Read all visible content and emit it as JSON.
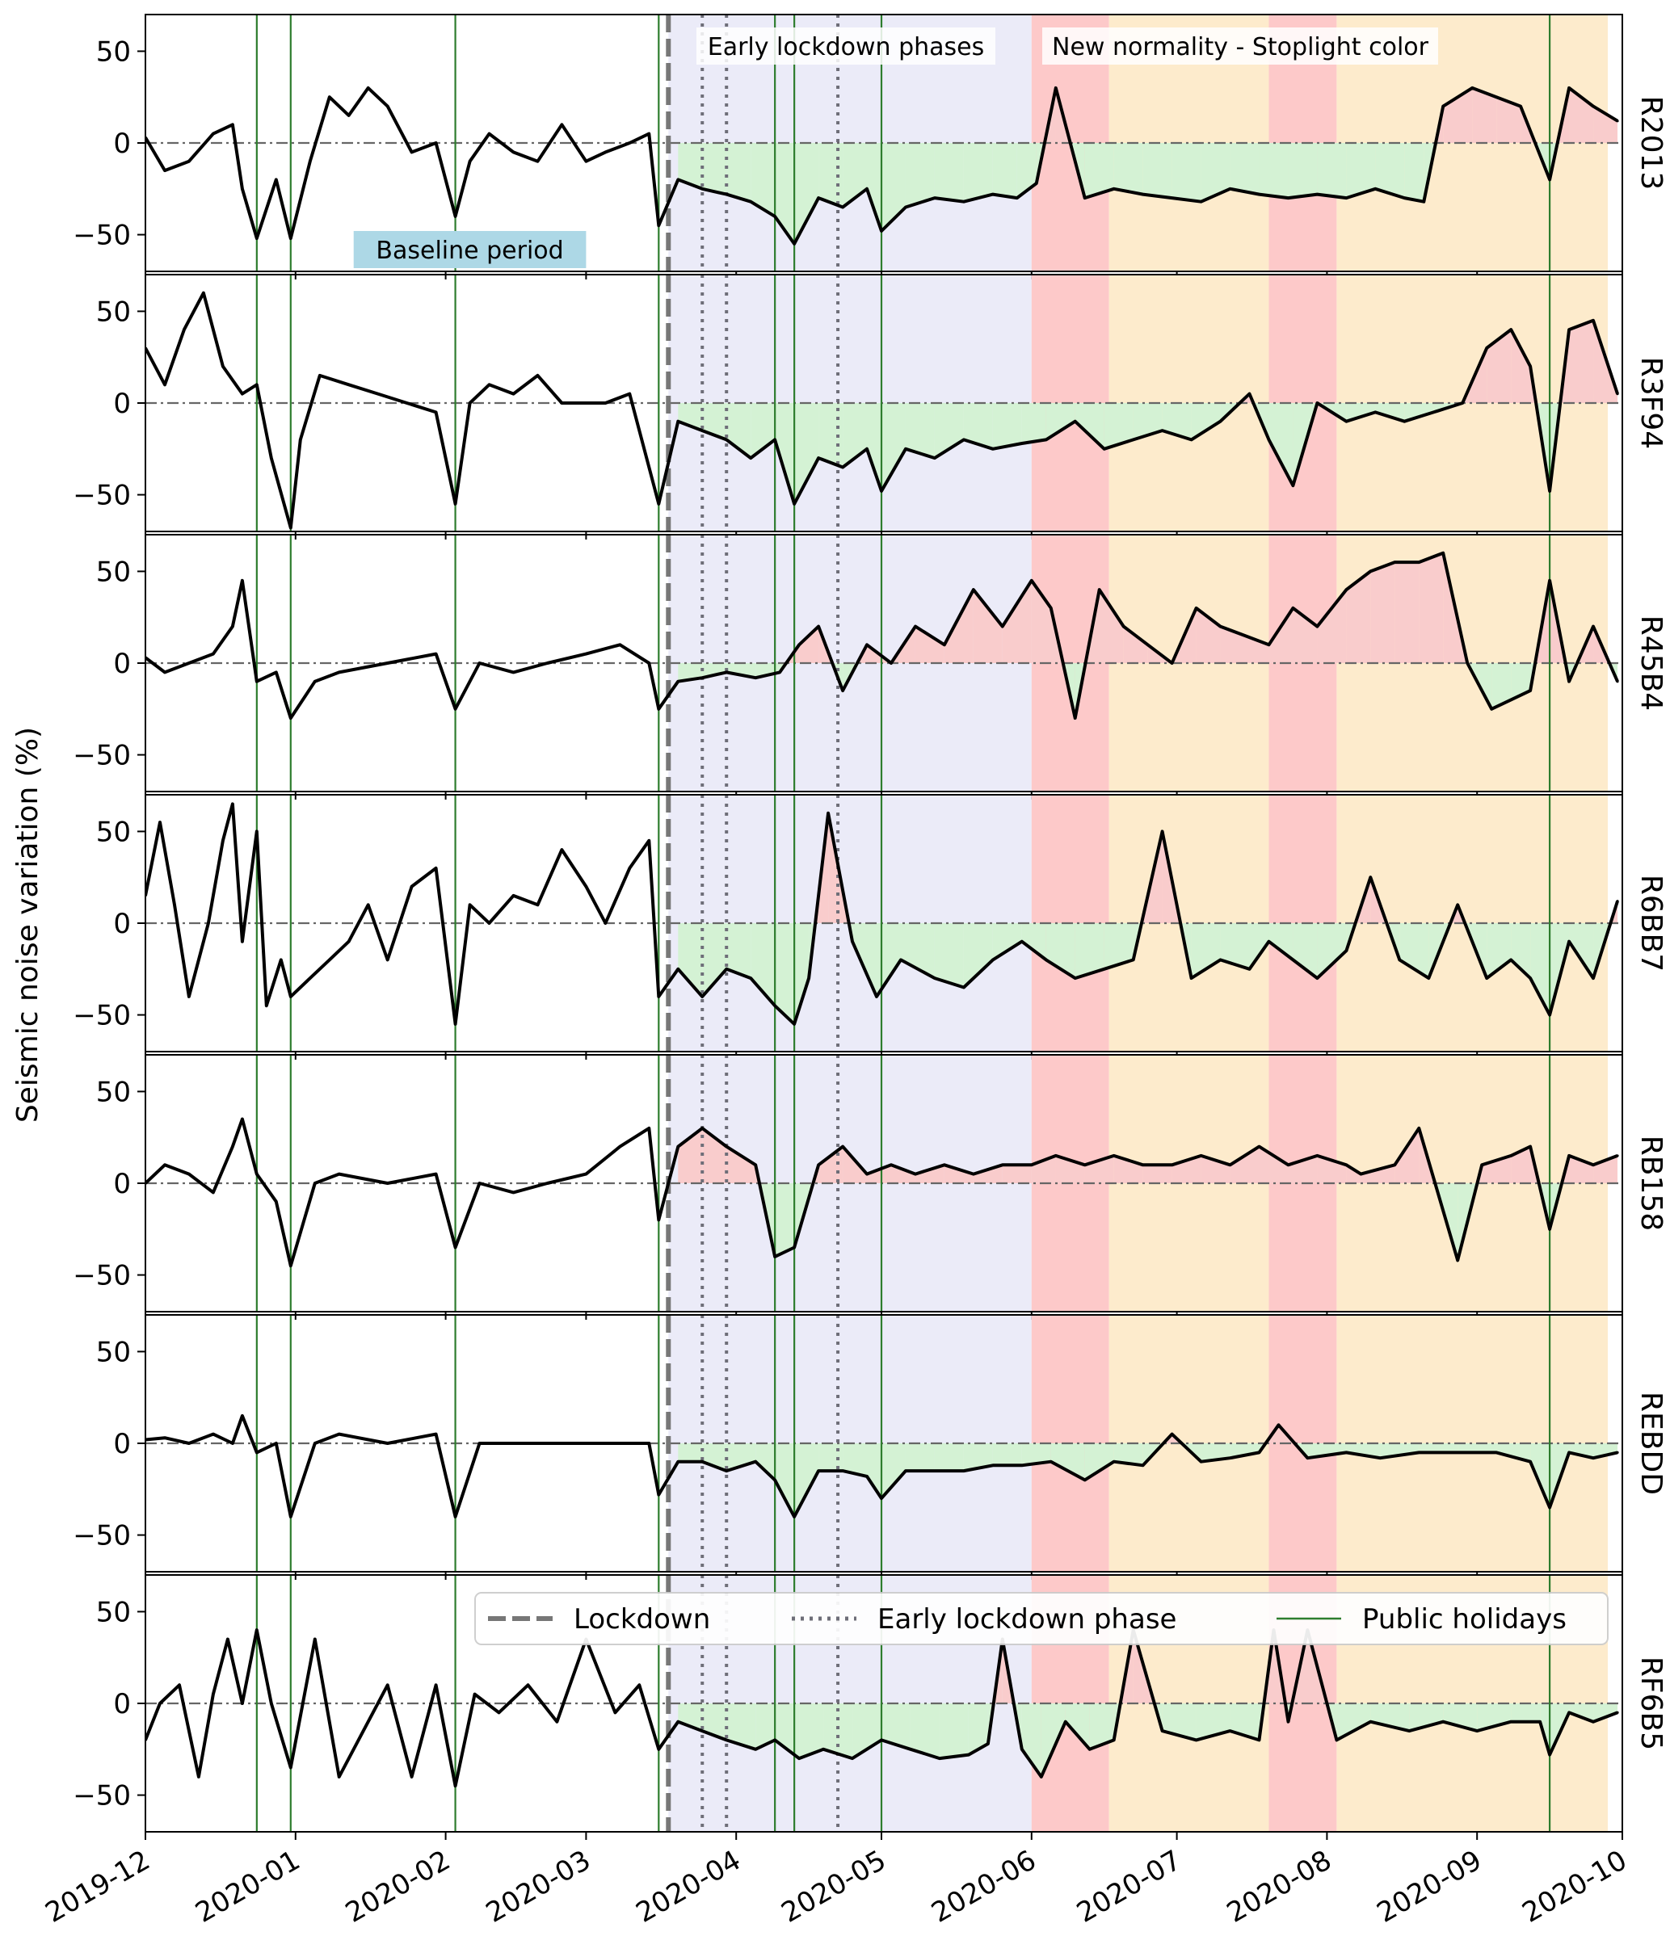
{
  "chart_data": {
    "type": "line",
    "ylabel": "Seismic noise variation (%)",
    "ylim": [
      -70,
      70
    ],
    "yticks": [
      -50,
      0,
      50
    ],
    "ytick_labels": [
      "−50",
      "0",
      "50"
    ],
    "xlim": [
      "2019-12-01",
      "2020-10-01"
    ],
    "xticks": [
      "2019-12-01",
      "2020-01-01",
      "2020-02-01",
      "2020-03-01",
      "2020-04-01",
      "2020-05-01",
      "2020-06-01",
      "2020-07-01",
      "2020-08-01",
      "2020-09-01",
      "2020-10-01"
    ],
    "xtick_labels": [
      "2019-12",
      "2020-01",
      "2020-02",
      "2020-03",
      "2020-04",
      "2020-05",
      "2020-06",
      "2020-07",
      "2020-08",
      "2020-09",
      "2020-10"
    ],
    "grid": false,
    "colors": {
      "line": "#000000",
      "holiday": "#2e7d2e",
      "neg_fill": "#d4f2d4",
      "pos_fill": "#f9cccc",
      "lockdown_bg": "#ebebf8",
      "red_phase": "#fdc9c9",
      "orange_phase": "#fdebcc",
      "baseline_box": "#add8e6"
    },
    "annotations": {
      "early_lockdown_phases": "Early lockdown phases",
      "new_normality": "New normality - Stoplight color",
      "baseline_period": "Baseline period"
    },
    "baseline_period": [
      "2020-01-13",
      "2020-03-01"
    ],
    "lockdown_date": "2020-03-18",
    "early_lockdown_phase_dates": [
      "2020-03-25",
      "2020-03-30",
      "2020-04-22"
    ],
    "public_holidays": [
      "2019-12-24",
      "2019-12-31",
      "2020-02-03",
      "2020-03-16",
      "2020-04-09",
      "2020-04-13",
      "2020-05-01",
      "2020-09-16"
    ],
    "shaded_periods": [
      {
        "start": "2020-03-18",
        "end": "2020-06-01",
        "kind": "lockdown"
      },
      {
        "start": "2020-06-01",
        "end": "2020-06-17",
        "kind": "red"
      },
      {
        "start": "2020-06-17",
        "end": "2020-07-20",
        "kind": "orange"
      },
      {
        "start": "2020-07-20",
        "end": "2020-08-03",
        "kind": "red"
      },
      {
        "start": "2020-08-03",
        "end": "2020-09-28",
        "kind": "orange"
      }
    ],
    "legend": {
      "placement": "top-right",
      "entries": [
        {
          "label": "Lockdown",
          "style": "dashed"
        },
        {
          "label": "Early lockdown phase",
          "style": "dotted"
        },
        {
          "label": "Public holidays",
          "style": "solid"
        }
      ]
    },
    "series": [
      {
        "name": "R2013",
        "x": [
          "2019-12-01",
          "2019-12-05",
          "2019-12-10",
          "2019-12-15",
          "2019-12-19",
          "2019-12-21",
          "2019-12-24",
          "2019-12-28",
          "2019-12-31",
          "2020-01-04",
          "2020-01-08",
          "2020-01-12",
          "2020-01-16",
          "2020-01-20",
          "2020-01-25",
          "2020-01-30",
          "2020-02-03",
          "2020-02-06",
          "2020-02-10",
          "2020-02-15",
          "2020-02-20",
          "2020-02-25",
          "2020-03-01",
          "2020-03-05",
          "2020-03-10",
          "2020-03-14",
          "2020-03-16",
          "2020-03-20",
          "2020-03-25",
          "2020-03-30",
          "2020-04-04",
          "2020-04-09",
          "2020-04-13",
          "2020-04-18",
          "2020-04-23",
          "2020-04-28",
          "2020-05-01",
          "2020-05-06",
          "2020-05-12",
          "2020-05-18",
          "2020-05-24",
          "2020-05-29",
          "2020-06-02",
          "2020-06-06",
          "2020-06-12",
          "2020-06-18",
          "2020-06-24",
          "2020-06-30",
          "2020-07-06",
          "2020-07-12",
          "2020-07-18",
          "2020-07-24",
          "2020-07-30",
          "2020-08-05",
          "2020-08-11",
          "2020-08-17",
          "2020-08-21",
          "2020-08-25",
          "2020-08-31",
          "2020-09-05",
          "2020-09-10",
          "2020-09-16",
          "2020-09-20",
          "2020-09-25",
          "2020-09-30"
        ],
        "values": [
          3,
          -15,
          -10,
          5,
          10,
          -25,
          -52,
          -20,
          -52,
          -10,
          25,
          15,
          30,
          20,
          -5,
          0,
          -40,
          -10,
          5,
          -5,
          -10,
          10,
          -10,
          -5,
          0,
          5,
          -45,
          -20,
          -25,
          -28,
          -32,
          -40,
          -55,
          -30,
          -35,
          -25,
          -48,
          -35,
          -30,
          -32,
          -28,
          -30,
          -22,
          30,
          -30,
          -25,
          -28,
          -30,
          -32,
          -25,
          -28,
          -30,
          -28,
          -30,
          -25,
          -30,
          -32,
          20,
          30,
          25,
          20,
          -20,
          30,
          20,
          12
        ]
      },
      {
        "name": "R3F94",
        "x": [
          "2019-12-01",
          "2019-12-05",
          "2019-12-09",
          "2019-12-13",
          "2019-12-17",
          "2019-12-21",
          "2019-12-24",
          "2019-12-27",
          "2019-12-31",
          "2020-01-02",
          "2020-01-06",
          "2020-01-12",
          "2020-01-18",
          "2020-01-24",
          "2020-01-30",
          "2020-02-03",
          "2020-02-06",
          "2020-02-10",
          "2020-02-15",
          "2020-02-20",
          "2020-02-25",
          "2020-03-01",
          "2020-03-05",
          "2020-03-10",
          "2020-03-16",
          "2020-03-20",
          "2020-03-25",
          "2020-03-30",
          "2020-04-04",
          "2020-04-09",
          "2020-04-13",
          "2020-04-18",
          "2020-04-23",
          "2020-04-28",
          "2020-05-01",
          "2020-05-06",
          "2020-05-12",
          "2020-05-18",
          "2020-05-24",
          "2020-05-30",
          "2020-06-04",
          "2020-06-10",
          "2020-06-16",
          "2020-06-22",
          "2020-06-28",
          "2020-07-04",
          "2020-07-10",
          "2020-07-16",
          "2020-07-20",
          "2020-07-25",
          "2020-07-30",
          "2020-08-05",
          "2020-08-11",
          "2020-08-17",
          "2020-08-23",
          "2020-08-29",
          "2020-09-03",
          "2020-09-08",
          "2020-09-12",
          "2020-09-16",
          "2020-09-20",
          "2020-09-25",
          "2020-09-30"
        ],
        "values": [
          30,
          10,
          40,
          60,
          20,
          5,
          10,
          -30,
          -68,
          -20,
          15,
          10,
          5,
          0,
          -5,
          -55,
          0,
          10,
          5,
          15,
          0,
          0,
          0,
          5,
          -55,
          -10,
          -15,
          -20,
          -30,
          -20,
          -55,
          -30,
          -35,
          -25,
          -48,
          -25,
          -30,
          -20,
          -25,
          -22,
          -20,
          -10,
          -25,
          -20,
          -15,
          -20,
          -10,
          5,
          -20,
          -45,
          0,
          -10,
          -5,
          -10,
          -5,
          0,
          30,
          40,
          20,
          -48,
          40,
          45,
          5
        ]
      },
      {
        "name": "R45B4",
        "x": [
          "2019-12-01",
          "2019-12-05",
          "2019-12-10",
          "2019-12-15",
          "2019-12-19",
          "2019-12-21",
          "2019-12-24",
          "2019-12-28",
          "2019-12-31",
          "2020-01-05",
          "2020-01-10",
          "2020-01-20",
          "2020-01-30",
          "2020-02-03",
          "2020-02-08",
          "2020-02-15",
          "2020-02-22",
          "2020-03-01",
          "2020-03-08",
          "2020-03-14",
          "2020-03-16",
          "2020-03-20",
          "2020-03-25",
          "2020-03-30",
          "2020-04-05",
          "2020-04-10",
          "2020-04-14",
          "2020-04-18",
          "2020-04-23",
          "2020-04-28",
          "2020-05-03",
          "2020-05-08",
          "2020-05-14",
          "2020-05-20",
          "2020-05-26",
          "2020-06-01",
          "2020-06-05",
          "2020-06-10",
          "2020-06-15",
          "2020-06-20",
          "2020-06-25",
          "2020-06-30",
          "2020-07-05",
          "2020-07-10",
          "2020-07-15",
          "2020-07-20",
          "2020-07-25",
          "2020-07-30",
          "2020-08-05",
          "2020-08-10",
          "2020-08-15",
          "2020-08-20",
          "2020-08-25",
          "2020-08-30",
          "2020-09-04",
          "2020-09-08",
          "2020-09-12",
          "2020-09-16",
          "2020-09-20",
          "2020-09-25",
          "2020-09-30"
        ],
        "values": [
          3,
          -5,
          0,
          5,
          20,
          45,
          -10,
          -5,
          -30,
          -10,
          -5,
          0,
          5,
          -25,
          0,
          -5,
          0,
          5,
          10,
          0,
          -25,
          -10,
          -8,
          -5,
          -8,
          -5,
          10,
          20,
          -15,
          10,
          0,
          20,
          10,
          40,
          20,
          45,
          30,
          -30,
          40,
          20,
          10,
          0,
          30,
          20,
          15,
          10,
          30,
          20,
          40,
          50,
          55,
          55,
          60,
          0,
          -25,
          -20,
          -15,
          45,
          -10,
          20,
          -10
        ]
      },
      {
        "name": "R6BB7",
        "x": [
          "2019-12-01",
          "2019-12-04",
          "2019-12-07",
          "2019-12-10",
          "2019-12-14",
          "2019-12-17",
          "2019-12-19",
          "2019-12-21",
          "2019-12-24",
          "2019-12-26",
          "2019-12-29",
          "2019-12-31",
          "2020-01-04",
          "2020-01-08",
          "2020-01-12",
          "2020-01-16",
          "2020-01-20",
          "2020-01-25",
          "2020-01-30",
          "2020-02-03",
          "2020-02-06",
          "2020-02-10",
          "2020-02-15",
          "2020-02-20",
          "2020-02-25",
          "2020-03-01",
          "2020-03-05",
          "2020-03-10",
          "2020-03-14",
          "2020-03-16",
          "2020-03-20",
          "2020-03-25",
          "2020-03-30",
          "2020-04-04",
          "2020-04-09",
          "2020-04-13",
          "2020-04-16",
          "2020-04-20",
          "2020-04-25",
          "2020-04-30",
          "2020-05-05",
          "2020-05-12",
          "2020-05-18",
          "2020-05-24",
          "2020-05-30",
          "2020-06-04",
          "2020-06-10",
          "2020-06-16",
          "2020-06-22",
          "2020-06-28",
          "2020-07-04",
          "2020-07-10",
          "2020-07-16",
          "2020-07-20",
          "2020-07-25",
          "2020-07-30",
          "2020-08-05",
          "2020-08-10",
          "2020-08-16",
          "2020-08-22",
          "2020-08-28",
          "2020-09-03",
          "2020-09-08",
          "2020-09-12",
          "2020-09-16",
          "2020-09-20",
          "2020-09-25",
          "2020-09-30"
        ],
        "values": [
          15,
          55,
          10,
          -40,
          0,
          45,
          65,
          -10,
          50,
          -45,
          -20,
          -40,
          -30,
          -20,
          -10,
          10,
          -20,
          20,
          30,
          -55,
          10,
          0,
          15,
          10,
          40,
          20,
          0,
          30,
          45,
          -40,
          -25,
          -40,
          -25,
          -30,
          -45,
          -55,
          -30,
          60,
          -10,
          -40,
          -20,
          -30,
          -35,
          -20,
          -10,
          -20,
          -30,
          -25,
          -20,
          50,
          -30,
          -20,
          -25,
          -10,
          -20,
          -30,
          -15,
          25,
          -20,
          -30,
          10,
          -30,
          -20,
          -30,
          -50,
          -10,
          -30,
          12
        ]
      },
      {
        "name": "RB158",
        "x": [
          "2019-12-01",
          "2019-12-05",
          "2019-12-10",
          "2019-12-15",
          "2019-12-19",
          "2019-12-21",
          "2019-12-24",
          "2019-12-28",
          "2019-12-31",
          "2020-01-05",
          "2020-01-10",
          "2020-01-20",
          "2020-01-30",
          "2020-02-03",
          "2020-02-08",
          "2020-02-15",
          "2020-02-22",
          "2020-03-01",
          "2020-03-08",
          "2020-03-14",
          "2020-03-16",
          "2020-03-20",
          "2020-03-25",
          "2020-03-30",
          "2020-04-05",
          "2020-04-09",
          "2020-04-13",
          "2020-04-18",
          "2020-04-23",
          "2020-04-28",
          "2020-05-03",
          "2020-05-08",
          "2020-05-14",
          "2020-05-20",
          "2020-05-26",
          "2020-06-01",
          "2020-06-06",
          "2020-06-12",
          "2020-06-18",
          "2020-06-24",
          "2020-06-30",
          "2020-07-06",
          "2020-07-12",
          "2020-07-18",
          "2020-07-24",
          "2020-07-30",
          "2020-08-05",
          "2020-08-08",
          "2020-08-15",
          "2020-08-20",
          "2020-08-28",
          "2020-09-02",
          "2020-09-08",
          "2020-09-12",
          "2020-09-16",
          "2020-09-20",
          "2020-09-25",
          "2020-09-30"
        ],
        "values": [
          0,
          10,
          5,
          -5,
          20,
          35,
          5,
          -10,
          -45,
          0,
          5,
          0,
          5,
          -35,
          0,
          -5,
          0,
          5,
          20,
          30,
          -20,
          20,
          30,
          20,
          10,
          -40,
          -35,
          10,
          20,
          5,
          10,
          5,
          10,
          5,
          10,
          10,
          15,
          10,
          15,
          10,
          10,
          15,
          10,
          20,
          10,
          15,
          10,
          5,
          10,
          30,
          -42,
          10,
          15,
          20,
          -25,
          15,
          10,
          15
        ]
      },
      {
        "name": "REBDD",
        "x": [
          "2019-12-01",
          "2019-12-05",
          "2019-12-10",
          "2019-12-15",
          "2019-12-19",
          "2019-12-21",
          "2019-12-24",
          "2019-12-28",
          "2019-12-31",
          "2020-01-05",
          "2020-01-10",
          "2020-01-20",
          "2020-01-30",
          "2020-02-03",
          "2020-02-08",
          "2020-02-15",
          "2020-02-22",
          "2020-03-01",
          "2020-03-08",
          "2020-03-14",
          "2020-03-16",
          "2020-03-20",
          "2020-03-25",
          "2020-03-30",
          "2020-04-05",
          "2020-04-09",
          "2020-04-13",
          "2020-04-18",
          "2020-04-23",
          "2020-04-28",
          "2020-05-01",
          "2020-05-06",
          "2020-05-12",
          "2020-05-18",
          "2020-05-24",
          "2020-05-30",
          "2020-06-05",
          "2020-06-12",
          "2020-06-18",
          "2020-06-24",
          "2020-06-30",
          "2020-07-06",
          "2020-07-12",
          "2020-07-18",
          "2020-07-22",
          "2020-07-28",
          "2020-08-05",
          "2020-08-12",
          "2020-08-20",
          "2020-08-28",
          "2020-09-05",
          "2020-09-12",
          "2020-09-16",
          "2020-09-20",
          "2020-09-25",
          "2020-09-30"
        ],
        "values": [
          2,
          3,
          0,
          5,
          0,
          15,
          -5,
          0,
          -40,
          0,
          5,
          0,
          5,
          -40,
          0,
          0,
          0,
          0,
          0,
          0,
          -28,
          -10,
          -10,
          -15,
          -10,
          -20,
          -40,
          -15,
          -15,
          -18,
          -30,
          -15,
          -15,
          -15,
          -12,
          -12,
          -10,
          -20,
          -10,
          -12,
          5,
          -10,
          -8,
          -5,
          10,
          -8,
          -5,
          -8,
          -5,
          -5,
          -5,
          -10,
          -35,
          -5,
          -8,
          -5
        ]
      },
      {
        "name": "RF6B5",
        "x": [
          "2019-12-01",
          "2019-12-04",
          "2019-12-08",
          "2019-12-12",
          "2019-12-15",
          "2019-12-18",
          "2019-12-21",
          "2019-12-24",
          "2019-12-27",
          "2019-12-31",
          "2020-01-05",
          "2020-01-10",
          "2020-01-15",
          "2020-01-20",
          "2020-01-25",
          "2020-01-30",
          "2020-02-03",
          "2020-02-07",
          "2020-02-12",
          "2020-02-18",
          "2020-02-24",
          "2020-03-01",
          "2020-03-07",
          "2020-03-12",
          "2020-03-16",
          "2020-03-20",
          "2020-03-25",
          "2020-03-30",
          "2020-04-05",
          "2020-04-09",
          "2020-04-14",
          "2020-04-19",
          "2020-04-25",
          "2020-05-01",
          "2020-05-07",
          "2020-05-13",
          "2020-05-19",
          "2020-05-23",
          "2020-05-26",
          "2020-05-30",
          "2020-06-03",
          "2020-06-08",
          "2020-06-13",
          "2020-06-18",
          "2020-06-22",
          "2020-06-28",
          "2020-07-05",
          "2020-07-12",
          "2020-07-18",
          "2020-07-21",
          "2020-07-24",
          "2020-07-28",
          "2020-08-03",
          "2020-08-10",
          "2020-08-18",
          "2020-08-25",
          "2020-09-01",
          "2020-09-08",
          "2020-09-14",
          "2020-09-16",
          "2020-09-20",
          "2020-09-25",
          "2020-09-30"
        ],
        "values": [
          -20,
          0,
          10,
          -40,
          5,
          35,
          0,
          40,
          0,
          -35,
          35,
          -40,
          -15,
          10,
          -40,
          10,
          -45,
          5,
          -5,
          10,
          -10,
          35,
          -5,
          10,
          -25,
          -10,
          -15,
          -20,
          -25,
          -20,
          -30,
          -25,
          -30,
          -20,
          -25,
          -30,
          -28,
          -22,
          35,
          -25,
          -40,
          -10,
          -25,
          -20,
          40,
          -15,
          -20,
          -15,
          -20,
          40,
          -10,
          40,
          -20,
          -10,
          -15,
          -10,
          -15,
          -10,
          -10,
          -28,
          -5,
          -10,
          -5
        ]
      }
    ]
  }
}
